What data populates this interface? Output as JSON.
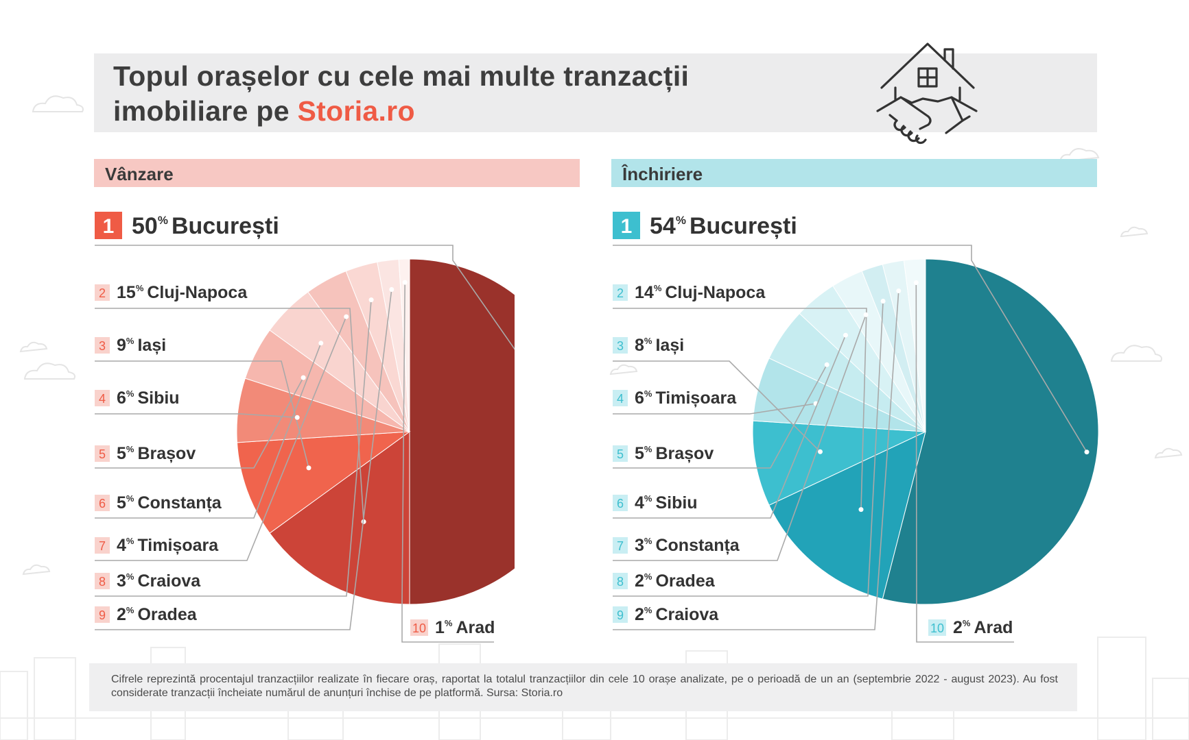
{
  "header": {
    "title_line1": "Topul orașelor cu cele mai multe tranzacții",
    "title_line2_prefix": "imobiliare pe ",
    "title_brand": "Storia.ro"
  },
  "icons": [
    "house-handshake-icon",
    "cloud-icon",
    "city-skyline-icon"
  ],
  "colors": {
    "brand": "#ef5b45",
    "sale_bar": "#f7c8c3",
    "rent_bar": "#b2e4ea",
    "sale_rank": "#ef5b45",
    "rent_rank": "#3dbfcf"
  },
  "sections": {
    "sale_label": "Vânzare",
    "rent_label": "Închiriere"
  },
  "chart_data": [
    {
      "type": "pie",
      "title": "Vânzare",
      "unit": "%",
      "categories": [
        "București",
        "Cluj-Napoca",
        "Iași",
        "Sibiu",
        "Brașov",
        "Constanța",
        "Timișoara",
        "Craiova",
        "Oradea",
        "Arad"
      ],
      "ranks": [
        "1",
        "2",
        "3",
        "4",
        "5",
        "6",
        "7",
        "8",
        "9",
        "10"
      ],
      "values": [
        50,
        15,
        9,
        6,
        5,
        5,
        4,
        3,
        2,
        1
      ],
      "colors": [
        "#9a322b",
        "#cc4438",
        "#f0644d",
        "#f28a78",
        "#f6b7ae",
        "#f9d4cf",
        "#f6c3bc",
        "#fad8d3",
        "#fbe5e2",
        "#fdf1ef"
      ]
    },
    {
      "type": "pie",
      "title": "Închiriere",
      "unit": "%",
      "categories": [
        "București",
        "Cluj-Napoca",
        "Iași",
        "Timișoara",
        "Brașov",
        "Sibiu",
        "Constanța",
        "Oradea",
        "Craiova",
        "Arad"
      ],
      "ranks": [
        "1",
        "2",
        "3",
        "4",
        "5",
        "6",
        "7",
        "8",
        "9",
        "10"
      ],
      "values": [
        54,
        14,
        8,
        6,
        5,
        4,
        3,
        2,
        2,
        2
      ],
      "colors": [
        "#1f818f",
        "#22a3b8",
        "#3dbfcf",
        "#b2e4ea",
        "#c6ecf0",
        "#d8f2f5",
        "#e8f7f9",
        "#d2eef2",
        "#e4f5f7",
        "#f1fafb"
      ]
    }
  ],
  "footnote": "Cifrele reprezintă procentajul tranzacțiilor realizate în fiecare oraș, raportat la totalul tranzacțiilor din cele 10 orașe analizate, pe o perioadă de un an (septembrie 2022 - august 2023). Au fost considerate tranzacții încheiate numărul de anunțuri închise de pe platformă. Sursa: Storia.ro"
}
